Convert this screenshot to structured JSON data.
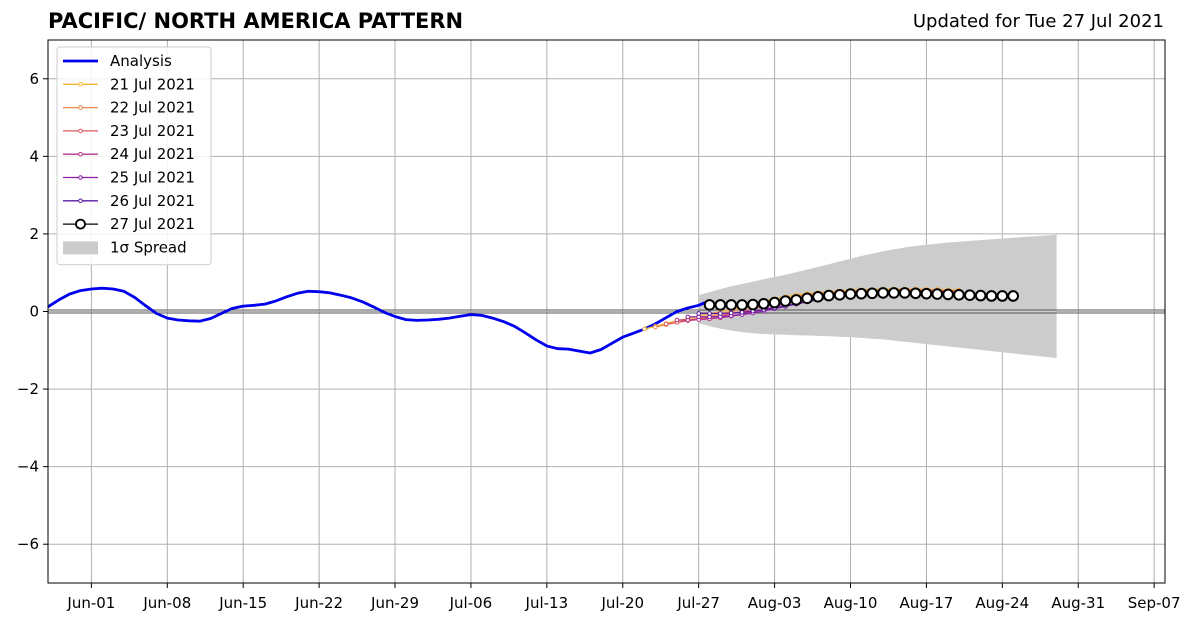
{
  "title": "PACIFIC/ NORTH AMERICA PATTERN",
  "updated": "Updated for Tue 27 Jul 2021",
  "chart_data": {
    "type": "line",
    "x_start": "2021-05-28",
    "x_end": "2021-09-08",
    "ylim": [
      -7,
      7
    ],
    "yticks": [
      -6,
      -4,
      -2,
      0,
      2,
      4,
      6
    ],
    "ytick_labels": [
      "−6",
      "−4",
      "−2",
      "0",
      "2",
      "4",
      "6"
    ],
    "xticks": [
      "2021-06-01",
      "2021-06-08",
      "2021-06-15",
      "2021-06-22",
      "2021-06-29",
      "2021-07-06",
      "2021-07-13",
      "2021-07-20",
      "2021-07-27",
      "2021-08-03",
      "2021-08-10",
      "2021-08-17",
      "2021-08-24",
      "2021-08-31",
      "2021-09-07"
    ],
    "xtick_labels": [
      "Jun-01",
      "Jun-08",
      "Jun-15",
      "Jun-22",
      "Jun-29",
      "Jul-06",
      "Jul-13",
      "Jul-20",
      "Jul-27",
      "Aug-03",
      "Aug-10",
      "Aug-17",
      "Aug-24",
      "Aug-31",
      "Sep-07"
    ],
    "grid": true,
    "legend_position": "top-left",
    "analysis": {
      "name": "Analysis",
      "color": "#0000ee",
      "start": "2021-05-28",
      "values": [
        0.12,
        0.3,
        0.45,
        0.54,
        0.58,
        0.6,
        0.58,
        0.52,
        0.36,
        0.15,
        -0.05,
        -0.17,
        -0.22,
        -0.24,
        -0.25,
        -0.18,
        -0.05,
        0.08,
        0.14,
        0.16,
        0.19,
        0.27,
        0.38,
        0.47,
        0.52,
        0.51,
        0.48,
        0.42,
        0.35,
        0.25,
        0.12,
        -0.02,
        -0.13,
        -0.21,
        -0.23,
        -0.22,
        -0.2,
        -0.17,
        -0.12,
        -0.08,
        -0.1,
        -0.17,
        -0.26,
        -0.38,
        -0.55,
        -0.73,
        -0.89,
        -0.96,
        -0.97,
        -1.02,
        -1.07,
        -0.98,
        -0.82,
        -0.66,
        -0.56,
        -0.45,
        -0.32,
        -0.16,
        0.0,
        0.09,
        0.16,
        0.28
      ]
    },
    "forecasts": [
      {
        "name": "21 Jul 2021",
        "color": "#f5b335",
        "start": "2021-07-22",
        "values": [
          -0.45,
          -0.38,
          -0.31,
          -0.24,
          -0.18,
          -0.12,
          -0.06,
          0.0,
          0.06,
          0.13,
          0.2,
          0.27,
          0.33,
          0.38,
          0.43,
          0.46,
          0.49,
          0.51,
          0.53,
          0.55,
          0.56,
          0.57,
          0.58,
          0.58,
          0.58,
          0.58,
          0.57,
          0.57,
          0.56,
          0.55
        ]
      },
      {
        "name": "22 Jul 2021",
        "color": "#ef8848",
        "start": "2021-07-23",
        "values": [
          -0.4,
          -0.34,
          -0.28,
          -0.22,
          -0.17,
          -0.12,
          -0.06,
          0.0,
          0.07,
          0.14,
          0.21,
          0.28,
          0.34,
          0.39,
          0.43,
          0.47,
          0.49,
          0.51,
          0.53,
          0.54,
          0.55,
          0.55,
          0.56,
          0.56,
          0.56,
          0.55,
          0.55,
          0.54,
          0.54
        ]
      },
      {
        "name": "23 Jul 2021",
        "color": "#dc5a66",
        "start": "2021-07-24",
        "values": [
          -0.32,
          -0.28,
          -0.24,
          -0.2,
          -0.16,
          -0.11,
          -0.06,
          0.0,
          0.06,
          0.13,
          0.2,
          0.27,
          0.33,
          0.38,
          0.42,
          0.45,
          0.48,
          0.5,
          0.51,
          0.52,
          0.53,
          0.53,
          0.53,
          0.53,
          0.53,
          0.53,
          0.52,
          0.52
        ]
      },
      {
        "name": "24 Jul 2021",
        "color": "#b8338a",
        "start": "2021-07-25",
        "values": [
          -0.22,
          -0.22,
          -0.21,
          -0.19,
          -0.16,
          -0.12,
          -0.07,
          -0.01,
          0.05,
          0.12,
          0.19,
          0.26,
          0.32,
          0.37,
          0.41,
          0.44,
          0.47,
          0.48,
          0.5,
          0.51,
          0.51,
          0.51,
          0.51,
          0.51,
          0.51,
          0.51,
          0.5
        ]
      },
      {
        "name": "25 Jul 2021",
        "color": "#8c1fa6",
        "start": "2021-07-26",
        "values": [
          -0.14,
          -0.14,
          -0.14,
          -0.13,
          -0.11,
          -0.08,
          -0.04,
          0.01,
          0.07,
          0.13,
          0.19,
          0.25,
          0.31,
          0.36,
          0.4,
          0.43,
          0.46,
          0.47,
          0.48,
          0.49,
          0.49,
          0.49,
          0.49,
          0.49,
          0.49,
          0.49
        ]
      },
      {
        "name": "26 Jul 2021",
        "color": "#5a1aa0",
        "start": "2021-07-27",
        "values": [
          -0.05,
          -0.05,
          -0.05,
          -0.04,
          -0.02,
          0.01,
          0.05,
          0.09,
          0.14,
          0.2,
          0.25,
          0.3,
          0.35,
          0.39,
          0.42,
          0.44,
          0.46,
          0.47,
          0.48,
          0.48,
          0.48,
          0.48,
          0.48,
          0.48,
          0.48
        ]
      },
      {
        "name": "27 Jul 2021",
        "color": "#000000",
        "start": "2021-07-28",
        "values": [
          0.17,
          0.17,
          0.17,
          0.17,
          0.18,
          0.2,
          0.23,
          0.27,
          0.3,
          0.34,
          0.38,
          0.41,
          0.43,
          0.45,
          0.46,
          0.47,
          0.48,
          0.48,
          0.48,
          0.47,
          0.46,
          0.45,
          0.44,
          0.43,
          0.42,
          0.41,
          0.4,
          0.4,
          0.4
        ]
      }
    ],
    "spread": {
      "name": "1σ Spread",
      "color": "#cccccc",
      "start": "2021-07-27",
      "upper": [
        0.42,
        0.5,
        0.58,
        0.65,
        0.71,
        0.77,
        0.83,
        0.89,
        0.95,
        1.01,
        1.08,
        1.15,
        1.22,
        1.29,
        1.36,
        1.43,
        1.49,
        1.55,
        1.6,
        1.65,
        1.69,
        1.72,
        1.75,
        1.78,
        1.8,
        1.82,
        1.84,
        1.86,
        1.88,
        1.9,
        1.92,
        1.94,
        1.96,
        1.98
      ],
      "lower": [
        -0.3,
        -0.38,
        -0.44,
        -0.49,
        -0.53,
        -0.56,
        -0.58,
        -0.59,
        -0.6,
        -0.61,
        -0.62,
        -0.63,
        -0.64,
        -0.65,
        -0.66,
        -0.68,
        -0.7,
        -0.72,
        -0.75,
        -0.78,
        -0.81,
        -0.84,
        -0.87,
        -0.9,
        -0.93,
        -0.96,
        -0.99,
        -1.02,
        -1.05,
        -1.08,
        -1.11,
        -1.14,
        -1.17,
        -1.2
      ]
    }
  }
}
